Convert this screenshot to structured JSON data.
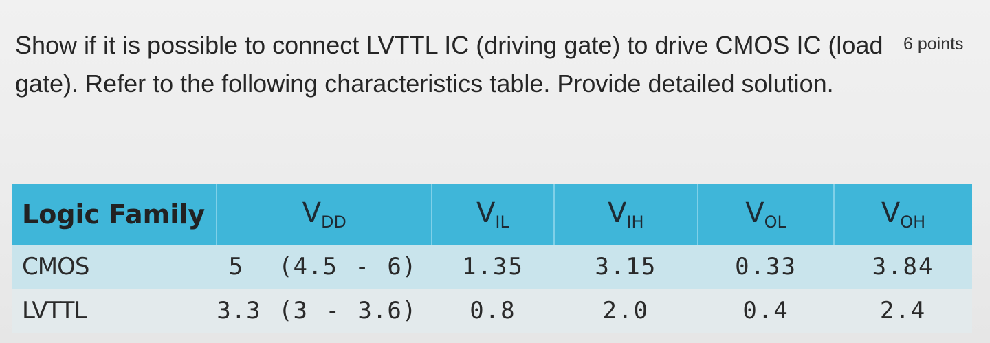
{
  "question": {
    "text": "Show if it is possible to connect LVTTL IC (driving gate) to drive CMOS IC (load gate). Refer to the following characteristics table. Provide detailed solution.",
    "points": "6 points"
  },
  "table": {
    "headers": [
      {
        "main": "Logic Family",
        "sub": ""
      },
      {
        "main": "V",
        "sub": "DD"
      },
      {
        "main": "V",
        "sub": "IL"
      },
      {
        "main": "V",
        "sub": "IH"
      },
      {
        "main": "V",
        "sub": "OL"
      },
      {
        "main": "V",
        "sub": "OH"
      }
    ],
    "rows": [
      [
        "CMOS",
        "5  (4.5 - 6)",
        "1.35",
        "3.15",
        "0.33",
        "3.84"
      ],
      [
        "LVTTL",
        "3.3 (3 - 3.6)",
        "0.8",
        "2.0",
        "0.4",
        "2.4"
      ]
    ]
  },
  "colors": {
    "header_bg": "#3fb6d9",
    "row_cmos_bg": "#c9e4ec",
    "row_lvttl_bg": "#e3eaec"
  }
}
